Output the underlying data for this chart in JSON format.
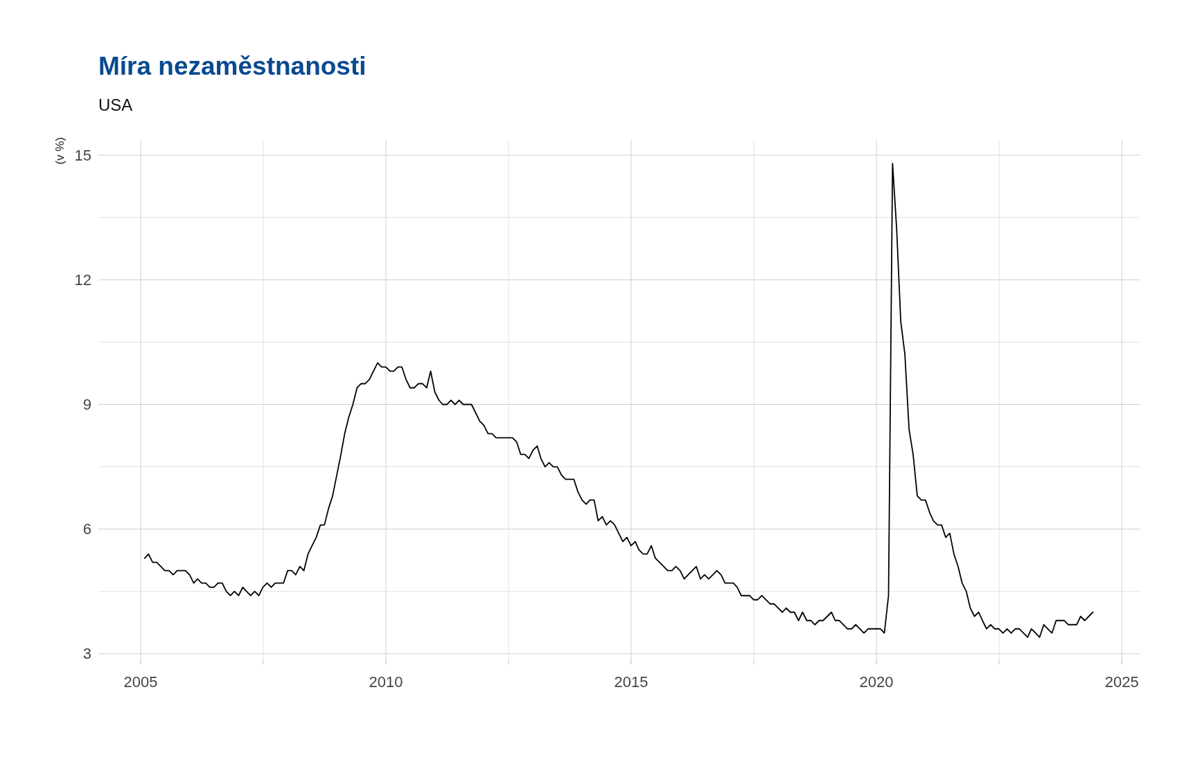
{
  "chart_data": {
    "type": "line",
    "title": "Míra nezaměstnanosti",
    "subtitle": "USA",
    "ylabel": "(v %)",
    "grid": true,
    "marker": "none",
    "line_style": "solid",
    "xlim": [
      "2004-02-21",
      "2025-05-19"
    ],
    "xticks": [
      "2005",
      {
        "value": "2007-07-02",
        "label": null
      },
      "2010",
      {
        "value": "2012-07-02",
        "label": null
      },
      "2015",
      {
        "value": "2017-07-02",
        "label": null
      },
      "2020",
      {
        "value": "2022-07-02",
        "label": null
      },
      "2025"
    ],
    "ylim": [
      2.83,
      15.37
    ],
    "yticks": [
      3,
      {
        "value": 4.5,
        "label": null
      },
      6,
      {
        "value": 7.5,
        "label": null
      },
      9,
      {
        "value": 10.5,
        "label": null
      },
      12,
      {
        "value": 13.5,
        "label": null
      },
      15
    ],
    "x": [
      "2005-01-31",
      "2005-02-28",
      "2005-03-31",
      "2005-04-30",
      "2005-05-31",
      "2005-06-30",
      "2005-07-31",
      "2005-08-31",
      "2005-09-30",
      "2005-10-31",
      "2005-11-30",
      "2005-12-31",
      "2006-01-31",
      "2006-02-28",
      "2006-03-31",
      "2006-04-30",
      "2006-05-31",
      "2006-06-30",
      "2006-07-31",
      "2006-08-31",
      "2006-09-30",
      "2006-10-31",
      "2006-11-30",
      "2006-12-31",
      "2007-01-31",
      "2007-02-28",
      "2007-03-31",
      "2007-04-30",
      "2007-05-31",
      "2007-06-30",
      "2007-07-31",
      "2007-08-31",
      "2007-09-30",
      "2007-10-31",
      "2007-11-30",
      "2007-12-31",
      "2008-01-31",
      "2008-02-29",
      "2008-03-31",
      "2008-04-30",
      "2008-05-31",
      "2008-06-30",
      "2008-07-31",
      "2008-08-31",
      "2008-09-30",
      "2008-10-31",
      "2008-11-30",
      "2008-12-31",
      "2009-01-31",
      "2009-02-28",
      "2009-03-31",
      "2009-04-30",
      "2009-05-31",
      "2009-06-30",
      "2009-07-31",
      "2009-08-31",
      "2009-09-30",
      "2009-10-31",
      "2009-11-30",
      "2009-12-31",
      "2010-01-31",
      "2010-02-28",
      "2010-03-31",
      "2010-04-30",
      "2010-05-31",
      "2010-06-30",
      "2010-07-31",
      "2010-08-31",
      "2010-09-30",
      "2010-10-31",
      "2010-11-30",
      "2010-12-31",
      "2011-01-31",
      "2011-02-28",
      "2011-03-31",
      "2011-04-30",
      "2011-05-31",
      "2011-06-30",
      "2011-07-31",
      "2011-08-31",
      "2011-09-30",
      "2011-10-31",
      "2011-11-30",
      "2011-12-31",
      "2012-01-31",
      "2012-02-29",
      "2012-03-31",
      "2012-04-30",
      "2012-05-31",
      "2012-06-30",
      "2012-07-31",
      "2012-08-31",
      "2012-09-30",
      "2012-10-31",
      "2012-11-30",
      "2012-12-31",
      "2013-01-31",
      "2013-02-28",
      "2013-03-31",
      "2013-04-30",
      "2013-05-31",
      "2013-06-30",
      "2013-07-31",
      "2013-08-31",
      "2013-09-30",
      "2013-10-31",
      "2013-11-30",
      "2013-12-31",
      "2014-01-31",
      "2014-02-28",
      "2014-03-31",
      "2014-04-30",
      "2014-05-31",
      "2014-06-30",
      "2014-07-31",
      "2014-08-31",
      "2014-09-30",
      "2014-10-31",
      "2014-11-30",
      "2014-12-31",
      "2015-01-31",
      "2015-02-28",
      "2015-03-31",
      "2015-04-30",
      "2015-05-31",
      "2015-06-30",
      "2015-07-31",
      "2015-08-31",
      "2015-09-30",
      "2015-10-31",
      "2015-11-30",
      "2015-12-31",
      "2016-01-31",
      "2016-02-29",
      "2016-03-31",
      "2016-04-30",
      "2016-05-31",
      "2016-06-30",
      "2016-07-31",
      "2016-08-31",
      "2016-09-30",
      "2016-10-31",
      "2016-11-30",
      "2016-12-31",
      "2017-01-31",
      "2017-02-28",
      "2017-03-31",
      "2017-04-30",
      "2017-05-31",
      "2017-06-30",
      "2017-07-31",
      "2017-08-31",
      "2017-09-30",
      "2017-10-31",
      "2017-11-30",
      "2017-12-31",
      "2018-01-31",
      "2018-02-28",
      "2018-03-31",
      "2018-04-30",
      "2018-05-31",
      "2018-06-30",
      "2018-07-31",
      "2018-08-31",
      "2018-09-30",
      "2018-10-31",
      "2018-11-30",
      "2018-12-31",
      "2019-01-31",
      "2019-02-28",
      "2019-03-31",
      "2019-04-30",
      "2019-05-31",
      "2019-06-30",
      "2019-07-31",
      "2019-08-31",
      "2019-09-30",
      "2019-10-31",
      "2019-11-30",
      "2019-12-31",
      "2020-01-31",
      "2020-02-29",
      "2020-03-31",
      "2020-04-30",
      "2020-05-31",
      "2020-06-30",
      "2020-07-31",
      "2020-08-31",
      "2020-09-30",
      "2020-10-31",
      "2020-11-30",
      "2020-12-31",
      "2021-01-31",
      "2021-02-28",
      "2021-03-31",
      "2021-04-30",
      "2021-05-31",
      "2021-06-30",
      "2021-07-31",
      "2021-08-31",
      "2021-09-30",
      "2021-10-31",
      "2021-11-30",
      "2021-12-31",
      "2022-01-31",
      "2022-02-28",
      "2022-03-31",
      "2022-04-30",
      "2022-05-31",
      "2022-06-30",
      "2022-07-31",
      "2022-08-31",
      "2022-09-30",
      "2022-10-31",
      "2022-11-30",
      "2022-12-31",
      "2023-01-31",
      "2023-02-28",
      "2023-03-31",
      "2023-04-30",
      "2023-05-31",
      "2023-06-30",
      "2023-07-31",
      "2023-08-31",
      "2023-09-30",
      "2023-10-31",
      "2023-11-30",
      "2023-12-31",
      "2024-01-31",
      "2024-02-29",
      "2024-03-31",
      "2024-04-30",
      "2024-05-31"
    ],
    "series": [
      {
        "color": "#000000",
        "values": [
          5.3,
          5.4,
          5.2,
          5.2,
          5.1,
          5.0,
          5.0,
          4.9,
          5.0,
          5.0,
          5.0,
          4.9,
          4.7,
          4.8,
          4.7,
          4.7,
          4.6,
          4.6,
          4.7,
          4.7,
          4.5,
          4.4,
          4.5,
          4.4,
          4.6,
          4.5,
          4.4,
          4.5,
          4.4,
          4.6,
          4.7,
          4.6,
          4.7,
          4.7,
          4.7,
          5.0,
          5.0,
          4.9,
          5.1,
          5.0,
          5.4,
          5.6,
          5.8,
          6.1,
          6.1,
          6.5,
          6.8,
          7.3,
          7.8,
          8.3,
          8.7,
          9.0,
          9.4,
          9.5,
          9.5,
          9.6,
          9.8,
          10.0,
          9.9,
          9.9,
          9.8,
          9.8,
          9.9,
          9.9,
          9.6,
          9.4,
          9.4,
          9.5,
          9.5,
          9.4,
          9.8,
          9.3,
          9.1,
          9.0,
          9.0,
          9.1,
          9.0,
          9.1,
          9.0,
          9.0,
          9.0,
          8.8,
          8.6,
          8.5,
          8.3,
          8.3,
          8.2,
          8.2,
          8.2,
          8.2,
          8.2,
          8.1,
          7.8,
          7.8,
          7.7,
          7.9,
          8.0,
          7.7,
          7.5,
          7.6,
          7.5,
          7.5,
          7.3,
          7.2,
          7.2,
          7.2,
          6.9,
          6.7,
          6.6,
          6.7,
          6.7,
          6.2,
          6.3,
          6.1,
          6.2,
          6.1,
          5.9,
          5.7,
          5.8,
          5.6,
          5.7,
          5.5,
          5.4,
          5.4,
          5.6,
          5.3,
          5.2,
          5.1,
          5.0,
          5.0,
          5.1,
          5.0,
          4.8,
          4.9,
          5.0,
          5.1,
          4.8,
          4.9,
          4.8,
          4.9,
          5.0,
          4.9,
          4.7,
          4.7,
          4.7,
          4.6,
          4.4,
          4.4,
          4.4,
          4.3,
          4.3,
          4.4,
          4.3,
          4.2,
          4.2,
          4.1,
          4.0,
          4.1,
          4.0,
          4.0,
          3.8,
          4.0,
          3.8,
          3.8,
          3.7,
          3.8,
          3.8,
          3.9,
          4.0,
          3.8,
          3.8,
          3.7,
          3.6,
          3.6,
          3.7,
          3.6,
          3.5,
          3.6,
          3.6,
          3.6,
          3.6,
          3.5,
          4.4,
          14.8,
          13.2,
          11.0,
          10.2,
          8.4,
          7.8,
          6.8,
          6.7,
          6.7,
          6.4,
          6.2,
          6.1,
          6.1,
          5.8,
          5.9,
          5.4,
          5.1,
          4.7,
          4.5,
          4.1,
          3.9,
          4.0,
          3.8,
          3.6,
          3.7,
          3.6,
          3.6,
          3.5,
          3.6,
          3.5,
          3.6,
          3.6,
          3.5,
          3.4,
          3.6,
          3.5,
          3.4,
          3.7,
          3.6,
          3.5,
          3.8,
          3.8,
          3.8,
          3.7,
          3.7,
          3.7,
          3.9,
          3.8,
          3.9,
          4.0
        ]
      }
    ]
  }
}
